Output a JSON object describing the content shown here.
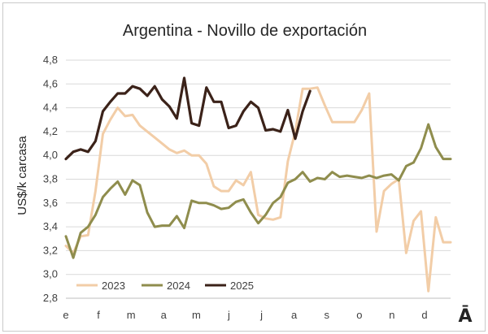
{
  "chart_data": {
    "type": "line",
    "title": "Argentina - Novillo de exportación",
    "ylabel": "US$/k carcasa",
    "xlabel": "",
    "ylim": [
      2.8,
      4.8
    ],
    "yticks": [
      "2,8",
      "3,0",
      "3,2",
      "3,4",
      "3,6",
      "3,8",
      "4,0",
      "4,2",
      "4,4",
      "4,6",
      "4,8"
    ],
    "ytick_values": [
      2.8,
      3.0,
      3.2,
      3.4,
      3.6,
      3.8,
      4.0,
      4.2,
      4.4,
      4.6,
      4.8
    ],
    "xticks": [
      "e",
      "f",
      "m",
      "a",
      "m",
      "j",
      "j",
      "a",
      "s",
      "o",
      "n",
      "d"
    ],
    "xlim": [
      1,
      53
    ],
    "grid": "horizontal",
    "legend_position": "bottom-left",
    "series": [
      {
        "name": "2023",
        "color": "#f2cda7",
        "x": [
          1,
          2,
          3,
          4,
          5,
          6,
          7,
          8,
          9,
          10,
          11,
          12,
          13,
          14,
          15,
          16,
          17,
          18,
          19,
          20,
          21,
          22,
          23,
          24,
          25,
          26,
          27,
          28,
          29,
          30,
          31,
          32,
          33,
          34,
          35,
          36,
          37,
          38,
          39,
          40,
          41,
          42,
          43,
          44,
          45,
          46,
          47,
          48,
          49,
          50,
          51,
          52,
          53
        ],
        "values": [
          3.24,
          3.18,
          3.32,
          3.33,
          3.7,
          4.18,
          4.3,
          4.4,
          4.33,
          4.34,
          4.25,
          4.2,
          4.15,
          4.1,
          4.05,
          4.02,
          4.04,
          4.0,
          4.0,
          3.93,
          3.74,
          3.7,
          3.7,
          3.79,
          3.75,
          3.86,
          3.5,
          3.47,
          3.46,
          3.48,
          3.95,
          4.2,
          4.56,
          4.56,
          4.57,
          4.42,
          4.28,
          4.28,
          4.28,
          4.28,
          4.38,
          4.52,
          3.36,
          3.7,
          3.76,
          3.8,
          3.18,
          3.45,
          3.53,
          2.86,
          3.48,
          3.27,
          3.27
        ]
      },
      {
        "name": "2024",
        "color": "#8f8d4d",
        "x": [
          1,
          2,
          3,
          4,
          5,
          6,
          7,
          8,
          9,
          10,
          11,
          12,
          13,
          14,
          15,
          16,
          17,
          18,
          19,
          20,
          21,
          22,
          23,
          24,
          25,
          26,
          27,
          28,
          29,
          30,
          31,
          32,
          33,
          34,
          35,
          36,
          37,
          38,
          39,
          40,
          41,
          42,
          43,
          44,
          45,
          46,
          47,
          48,
          49,
          50,
          51,
          52,
          53
        ],
        "values": [
          3.32,
          3.14,
          3.35,
          3.4,
          3.5,
          3.65,
          3.72,
          3.78,
          3.67,
          3.79,
          3.75,
          3.52,
          3.4,
          3.41,
          3.41,
          3.49,
          3.39,
          3.62,
          3.6,
          3.6,
          3.58,
          3.55,
          3.56,
          3.61,
          3.63,
          3.52,
          3.43,
          3.5,
          3.6,
          3.65,
          3.77,
          3.8,
          3.86,
          3.78,
          3.81,
          3.8,
          3.86,
          3.82,
          3.83,
          3.82,
          3.81,
          3.83,
          3.81,
          3.83,
          3.84,
          3.79,
          3.91,
          3.94,
          4.06,
          4.26,
          4.07,
          3.97,
          3.97
        ]
      },
      {
        "name": "2025",
        "color": "#3b2219",
        "x": [
          1,
          2,
          3,
          4,
          5,
          6,
          7,
          8,
          9,
          10,
          11,
          12,
          13,
          14,
          15,
          16,
          17,
          18,
          19,
          20,
          21,
          22,
          23,
          24,
          25,
          26,
          27,
          28,
          29,
          30,
          31,
          32,
          33,
          34
        ],
        "values": [
          3.97,
          4.03,
          4.05,
          4.03,
          4.12,
          4.37,
          4.45,
          4.52,
          4.52,
          4.58,
          4.56,
          4.5,
          4.58,
          4.47,
          4.41,
          4.31,
          4.65,
          4.27,
          4.25,
          4.57,
          4.45,
          4.45,
          4.23,
          4.25,
          4.37,
          4.45,
          4.4,
          4.21,
          4.22,
          4.2,
          4.38,
          4.14,
          4.37,
          4.54
        ]
      }
    ]
  },
  "logo": {
    "text": "Ā"
  }
}
